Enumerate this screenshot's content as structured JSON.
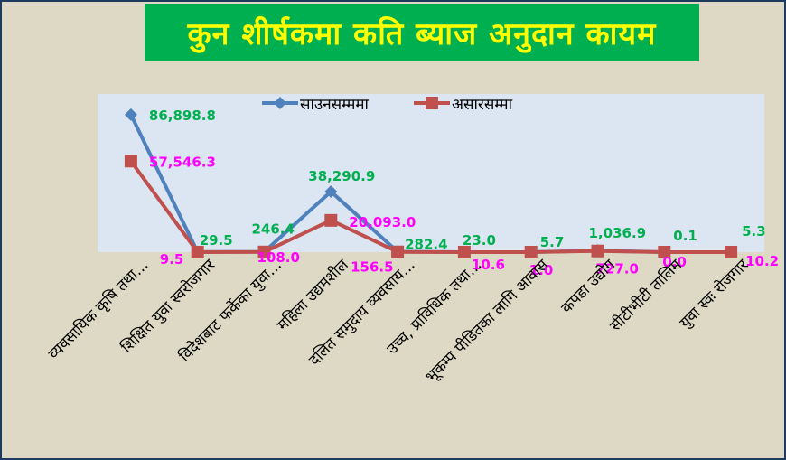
{
  "chart_data": {
    "type": "line",
    "title": "कुन शीर्षकमा कति ब्याज अनुदान कायम",
    "categories": [
      "व्यवसायिक कृषि तथा...",
      "शिक्षित युवा स्वरोजगार",
      "विदेशबाट फर्केका युवा...",
      "महिला उद्यमशील",
      "दलित समुदाय व्यवसाय...",
      "उच्च, प्राविधिक तथा...",
      "भूकम्प पीडितका लागि आवास",
      "कपडा उद्योग",
      "सीटीभीटी तालिम",
      "युवा स्वः रोजगार"
    ],
    "series": [
      {
        "name": "साउनसम्ममा",
        "color": "#4f81bd",
        "marker": "diamond",
        "values": [
          86898.8,
          29.5,
          246.4,
          38290.9,
          282.4,
          23.0,
          5.7,
          1036.9,
          0.1,
          5.3
        ],
        "labels": [
          "86,898.8",
          "29.5",
          "246.4",
          "38,290.9",
          "282.4",
          "23.0",
          "5.7",
          "1,036.9",
          "0.1",
          "5.3"
        ]
      },
      {
        "name": "असारसम्मा",
        "color": "#c0504d",
        "marker": "square",
        "values": [
          57546.3,
          9.5,
          108.0,
          20093.0,
          156.5,
          10.6,
          1.0,
          727.0,
          0.0,
          10.2
        ],
        "labels": [
          "57,546.3",
          "9.5",
          "108.0",
          "20,093.0",
          "156.5",
          "10.6",
          "1.0",
          "727.0",
          "0.0",
          "10.2"
        ]
      }
    ],
    "ylim": [
      0,
      100000
    ],
    "legend": "top",
    "grid": false
  },
  "colors": {
    "plot_area": "#dce6f2",
    "frame": "#ddd9c4",
    "title_bg": "#00b050",
    "title_text": "#ffff00",
    "label_series1": "#00b050",
    "label_series2": "#ff00ff"
  }
}
